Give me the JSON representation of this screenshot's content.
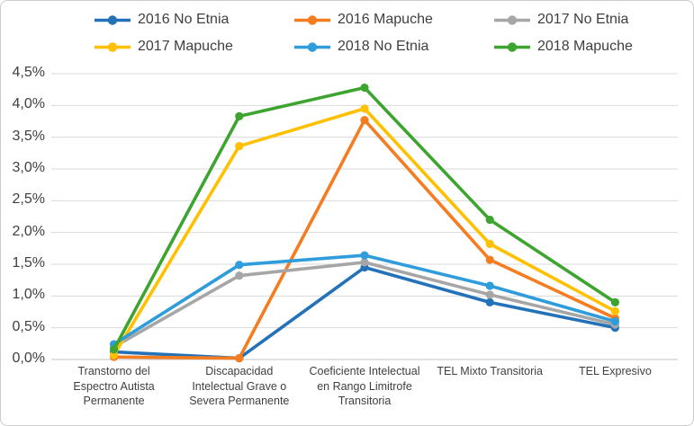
{
  "chart_data": {
    "type": "line",
    "title": "",
    "xlabel": "",
    "ylabel": "",
    "grid": true,
    "legend_position": "top",
    "ylim": [
      0,
      4.5
    ],
    "yticks": {
      "values": [
        0,
        0.5,
        1,
        1.5,
        2,
        2.5,
        3,
        3.5,
        4,
        4.5
      ],
      "labels": [
        "0,0%",
        "0,5%",
        "1,0%",
        "1,5%",
        "2,0%",
        "2,5%",
        "3,0%",
        "3,5%",
        "4,0%",
        "4,5%"
      ]
    },
    "categories": [
      "Transtorno del\nEspectro Autista\nPermanente",
      "Discapacidad\nIntelectual Grave o\nSevera Permanente",
      "Coeficiente Intelectual\nen Rango Limitrofe\nTransitoria",
      "TEL Mixto Transitoria",
      "TEL Expresivo"
    ],
    "series": [
      {
        "name": "2016 No Etnia",
        "color": "#2372b9",
        "values": [
          0.12,
          0.02,
          1.45,
          0.9,
          0.5
        ]
      },
      {
        "name": "2016 Mapuche",
        "color": "#f57c1f",
        "values": [
          0.04,
          0.02,
          3.77,
          1.57,
          0.65
        ]
      },
      {
        "name": "2017 No Etnia",
        "color": "#a6a6a6",
        "values": [
          0.2,
          1.32,
          1.53,
          1.02,
          0.55
        ]
      },
      {
        "name": "2017 Mapuche",
        "color": "#ffc000",
        "values": [
          0.07,
          3.36,
          3.95,
          1.82,
          0.76
        ]
      },
      {
        "name": "2018 No Etnia",
        "color": "#2f9cdb",
        "values": [
          0.24,
          1.49,
          1.64,
          1.16,
          0.6
        ]
      },
      {
        "name": "2018 Mapuche",
        "color": "#3da52f",
        "values": [
          0.16,
          3.83,
          4.28,
          2.2,
          0.9
        ]
      }
    ],
    "gridline_color": "#d9d9d9",
    "axis_line_color": "#c3c3c3",
    "text_color": "#3f3f3f"
  }
}
